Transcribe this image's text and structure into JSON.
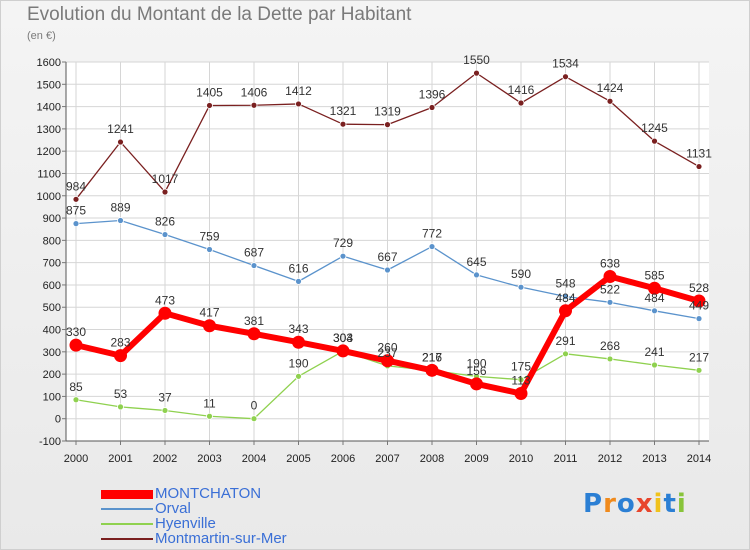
{
  "title": "Evolution du Montant de la Dette par Habitant",
  "unit": "(en €)",
  "logo": "Proxiti",
  "chart_data": {
    "type": "line",
    "title": "Evolution du Montant de la Dette par Habitant",
    "ylabel": "(en €)",
    "xlabel": "",
    "x": [
      2000,
      2001,
      2002,
      2003,
      2004,
      2005,
      2006,
      2007,
      2008,
      2009,
      2010,
      2011,
      2012,
      2013,
      2014
    ],
    "ylim": [
      -100,
      1600
    ],
    "yticks": [
      -100,
      0,
      100,
      200,
      300,
      400,
      500,
      600,
      700,
      800,
      900,
      1000,
      1100,
      1200,
      1300,
      1400,
      1500,
      1600
    ],
    "grid": true,
    "legend": "bottom-left",
    "series": [
      {
        "name": "Montmartin-sur-Mer",
        "color": "#7a2020",
        "width": 1.3,
        "marker": 3,
        "values": [
          984,
          1241,
          1017,
          1405,
          1406,
          1412,
          1321,
          1319,
          1396,
          1550,
          1416,
          1534,
          1424,
          1245,
          1131
        ]
      },
      {
        "name": "Orval",
        "color": "#5b93cc",
        "width": 1.3,
        "marker": 3,
        "values": [
          875,
          889,
          826,
          759,
          687,
          616,
          729,
          667,
          772,
          645,
          590,
          548,
          522,
          484,
          449
        ]
      },
      {
        "name": "Hyenville",
        "color": "#8fd14f",
        "width": 1.3,
        "marker": 3,
        "values": [
          85,
          53,
          37,
          11,
          0,
          190,
          303,
          237,
          216,
          190,
          175,
          291,
          268,
          241,
          217
        ]
      },
      {
        "name": "MONTCHATON",
        "color": "#ff0000",
        "width": 6,
        "marker": 6.5,
        "values": [
          330,
          283,
          473,
          417,
          381,
          343,
          304,
          260,
          217,
          156,
          113,
          484,
          638,
          585,
          528
        ]
      }
    ]
  }
}
